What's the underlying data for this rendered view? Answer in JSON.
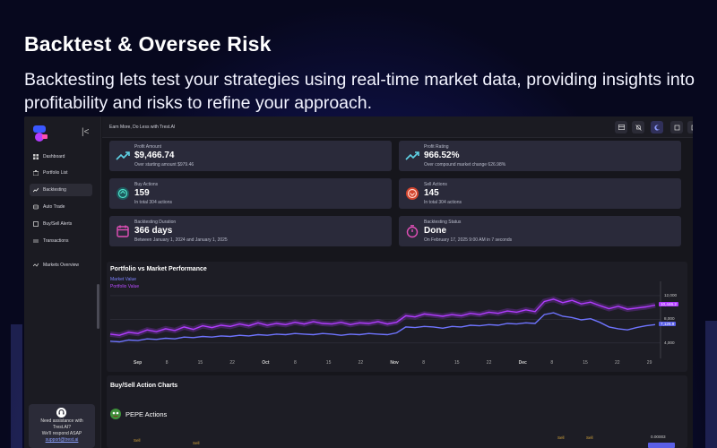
{
  "hero": {
    "title": "Backtest & Oversee Risk",
    "subtitle": "Backtesting lets test your strategies using real-time market data, providing insights into profitability and risks to refine your approach."
  },
  "sidebar": {
    "items": [
      {
        "label": "Dashboard",
        "icon": "dashboard-icon"
      },
      {
        "label": "Portfolio List",
        "icon": "portfolio-icon"
      },
      {
        "label": "Backtesting",
        "icon": "trend-icon"
      },
      {
        "label": "Auto Trade",
        "icon": "auto-trade-icon"
      },
      {
        "label": "Buy/Sell Alerts",
        "icon": "alerts-icon"
      },
      {
        "label": "Transactions",
        "icon": "transactions-icon"
      },
      {
        "label": "Markets Overview",
        "icon": "markets-icon"
      }
    ],
    "active_index": 2,
    "help": {
      "line1": "Need assistance with",
      "line2": "Trest.AI?",
      "line3": "We'll respond ASAP",
      "email": "support@trest.ai"
    }
  },
  "topbar": {
    "tagline": "Earn More, Do Less with Trest.AI",
    "buttons": [
      "layout-icon",
      "notifications-off-icon",
      "moon-icon",
      "fullscreen-icon",
      "logout-icon"
    ]
  },
  "stats": [
    {
      "label": "Profit Amount",
      "value": "$9,466.74",
      "desc": "Over starting amount $979.46",
      "icon": "trend-up-icon"
    },
    {
      "label": "Profit Rating",
      "value": "966.52%",
      "desc": "Over compound market change 626.98%",
      "icon": "trend-up-icon"
    },
    {
      "label": "Buy Actions",
      "value": "159",
      "desc": "In total 304 actions",
      "icon": "buy-icon"
    },
    {
      "label": "Sell Actions",
      "value": "145",
      "desc": "In total 304 actions",
      "icon": "sell-icon"
    },
    {
      "label": "Backtesting Duration",
      "value": "366 days",
      "desc": "Between January 1, 2024 and January 1, 2025",
      "icon": "calendar-icon"
    },
    {
      "label": "Backtesting Status",
      "value": "Done",
      "desc": "On February 17, 2025 9:00 AM in 7 seconds",
      "icon": "stopwatch-icon"
    }
  ],
  "chart_data": {
    "type": "line",
    "title": "Portfolio vs Market Performance",
    "legend": [
      "Market Value",
      "Portfolio Value"
    ],
    "colors": {
      "market": "#6f74ff",
      "portfolio": "#b13cff"
    },
    "x_ticks": [
      {
        "label": "Sep",
        "bold": true
      },
      {
        "label": "8",
        "bold": false
      },
      {
        "label": "15",
        "bold": false
      },
      {
        "label": "22",
        "bold": false
      },
      {
        "label": "Oct",
        "bold": true
      },
      {
        "label": "8",
        "bold": false
      },
      {
        "label": "15",
        "bold": false
      },
      {
        "label": "22",
        "bold": false
      },
      {
        "label": "Nov",
        "bold": true
      },
      {
        "label": "8",
        "bold": false
      },
      {
        "label": "15",
        "bold": false
      },
      {
        "label": "22",
        "bold": false
      },
      {
        "label": "Dec",
        "bold": true
      },
      {
        "label": "8",
        "bold": false
      },
      {
        "label": "15",
        "bold": false
      },
      {
        "label": "22",
        "bold": false
      },
      {
        "label": "29",
        "bold": false
      }
    ],
    "y_ticks": [
      "12,000",
      "8,000",
      "4,000"
    ],
    "ylim": [
      2000,
      13500
    ],
    "portfolio_last": "10,446.2",
    "market_last": "7,126.9",
    "series": [
      {
        "name": "Portfolio Value",
        "values": [
          5500,
          5300,
          5800,
          5600,
          6200,
          5900,
          6400,
          6100,
          6700,
          6300,
          6900,
          6600,
          7000,
          6800,
          7200,
          6900,
          7400,
          7000,
          7300,
          7100,
          7500,
          7200,
          7600,
          7300,
          7200,
          7500,
          7100,
          7400,
          7300,
          7600,
          7200,
          7500,
          8600,
          8400,
          8900,
          8700,
          8500,
          8800,
          8600,
          9000,
          8800,
          9200,
          9000,
          9400,
          9200,
          9600,
          9300,
          11000,
          11400,
          10800,
          11200,
          10600,
          10900,
          10300,
          9800,
          10200,
          9700,
          9900,
          10100,
          10400
        ]
      },
      {
        "name": "Market Value",
        "values": [
          4300,
          4200,
          4500,
          4400,
          4700,
          4600,
          4800,
          4700,
          5000,
          4900,
          5100,
          5000,
          5200,
          5100,
          5300,
          5200,
          5400,
          5300,
          5500,
          5400,
          5600,
          5500,
          5400,
          5600,
          5500,
          5300,
          5500,
          5400,
          5600,
          5500,
          5400,
          5700,
          6700,
          6600,
          6800,
          6700,
          6500,
          6800,
          6700,
          7000,
          6900,
          7100,
          7000,
          7300,
          7200,
          7400,
          7300,
          8800,
          9100,
          8500,
          8300,
          7900,
          8100,
          7500,
          6700,
          6400,
          6200,
          6600,
          6900,
          7100
        ]
      }
    ]
  },
  "actions_panel": {
    "title": "Buy/Sell Action Charts",
    "coin_title": "PEPE Actions",
    "y_tick": "0.00003",
    "sell_label": "Sell"
  }
}
